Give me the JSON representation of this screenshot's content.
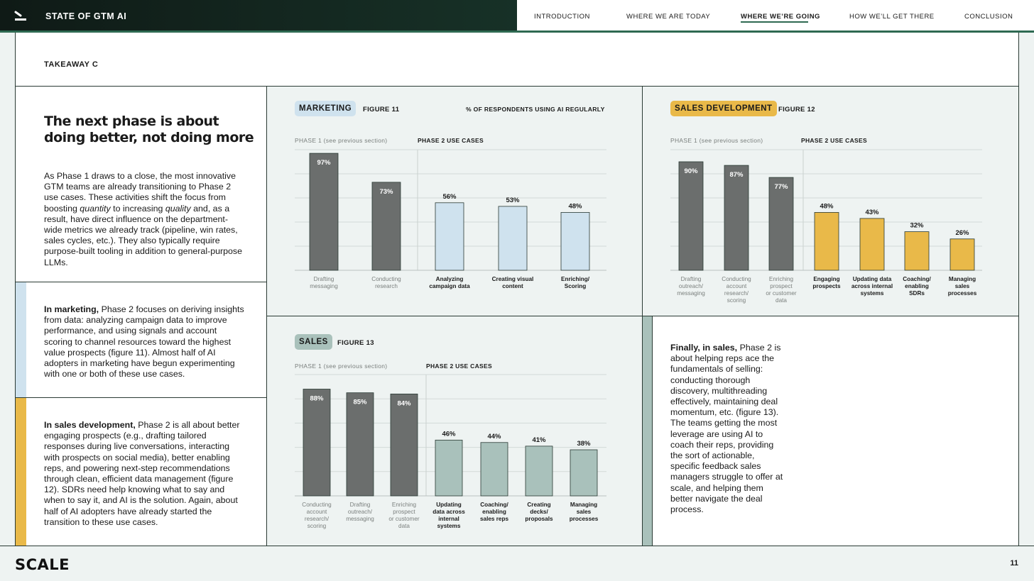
{
  "header": {
    "title": "STATE OF GTM AI",
    "nav": [
      {
        "label": "INTRODUCTION",
        "active": false
      },
      {
        "label": "WHERE WE ARE TODAY",
        "active": false
      },
      {
        "label": "WHERE WE’RE GOING",
        "active": true
      },
      {
        "label": "HOW WE’LL GET THERE",
        "active": false
      },
      {
        "label": "CONCLUSION",
        "active": false
      }
    ]
  },
  "takeaway": "TAKEAWAY C",
  "headline": "The next phase is about doing better, not doing more",
  "intro": {
    "p1": "As Phase 1 draws to a close, the most innovative GTM teams are already transitioning to Phase 2 use cases. These activities shift the focus from boosting ",
    "quantity": "quantity",
    "p2": " to increasing ",
    "quality": "quality",
    "p3": " and, as a result, have direct influence on the department-wide metrics we already track (pipeline, win rates, sales cycles, etc.). They also typically require purpose-built tooling in addition to general-purpose LLMs."
  },
  "marketing_text": {
    "lead": "In marketing,",
    "rest": " Phase 2 focuses on deriving insights from data: analyzing campaign data to improve performance, and using signals and account scoring to channel resources toward the highest value prospects (figure 11). Almost half of AI adopters in marketing have begun experimenting with one or both of these use cases."
  },
  "salesdev_text": {
    "lead": "In sales development,",
    "rest": " Phase 2 is all about better engaging prospects (e.g., drafting tailored responses during live conversations, interacting with prospects on social media), better enabling reps, and powering next-step recommendations through clean, efficient data management (figure 12). SDRs need help knowing what to say and when to say it, and AI is the solution. Again, about half of AI adopters have already started the transition to these use cases."
  },
  "sales_text": {
    "lead": "Finally, in sales,",
    "rest": " Phase 2 is about helping reps ace the fundamentals of selling: conducting thorough discovery, multithreading effectively, maintaining deal momentum, etc. (figure 13). The teams getting the most leverage are using AI to coach their reps, providing the sort of actionable, specific feedback sales managers struggle to offer at scale, and helping them better navigate the deal process."
  },
  "labels": {
    "phase1": "PHASE 1 (see previous section)",
    "phase2": "PHASE 2 USE CASES",
    "pct_note": "% OF RESPONDENTS USING AI REGULARLY"
  },
  "colors": {
    "phase1_bar": "#6b6e6d",
    "marketing": "#cfe2ee",
    "sales_dev": "#e9b949",
    "sales": "#a9c1bb",
    "accent_green": "#2e6a52"
  },
  "chart_data": [
    {
      "type": "bar",
      "id": "marketing",
      "tag": "MARKETING",
      "figure": "FIGURE 11",
      "phase1_count": 2,
      "categories": [
        "Drafting\nmessaging",
        "Conducting\nresearch",
        "Analyzing\ncampaign data",
        "Creating visual\ncontent",
        "Enriching/\nScoring"
      ],
      "values": [
        97,
        73,
        56,
        53,
        48
      ],
      "ylim": [
        0,
        100
      ]
    },
    {
      "type": "bar",
      "id": "sales_dev",
      "tag": "SALES DEVELOPMENT",
      "figure": "FIGURE 12",
      "phase1_count": 3,
      "categories": [
        "Drafting\noutreach/\nmessaging",
        "Conducting\naccount\nresearch/\nscoring",
        "Enriching\nprospect\nor customer\ndata",
        "Engaging\nprospects",
        "Updating data\nacross internal\nsystems",
        "Coaching/\nenabling\nSDRs",
        "Managing\nsales\nprocesses"
      ],
      "values": [
        90,
        87,
        77,
        48,
        43,
        32,
        26
      ],
      "ylim": [
        0,
        100
      ]
    },
    {
      "type": "bar",
      "id": "sales",
      "tag": "SALES",
      "figure": "FIGURE 13",
      "phase1_count": 3,
      "categories": [
        "Conducting\naccount\nresearch/\nscoring",
        "Drafting\noutreach/\nmessaging",
        "Enriching\nprospect\nor customer\ndata",
        "Updating\ndata across\ninternal\nsystems",
        "Coaching/\nenabling\nsales reps",
        "Creating\ndecks/\nproposals",
        "Managing\nsales\nprocesses"
      ],
      "values": [
        88,
        85,
        84,
        46,
        44,
        41,
        38
      ],
      "ylim": [
        0,
        100
      ]
    }
  ],
  "footer": {
    "logo": "SCALE",
    "page": "11"
  }
}
